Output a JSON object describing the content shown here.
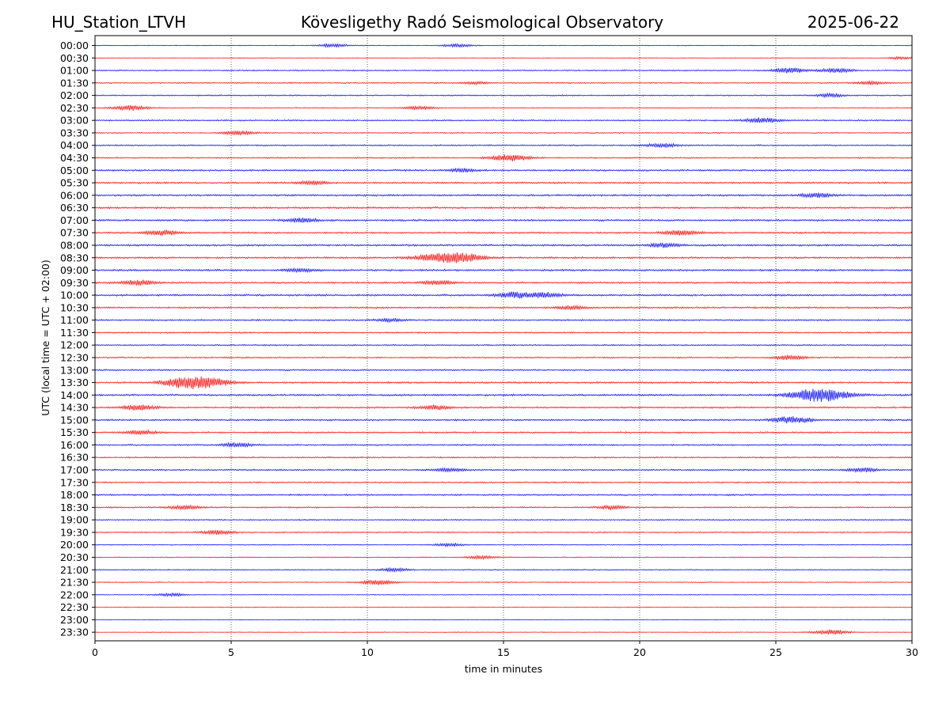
{
  "header": {
    "station": "HU_Station_LTVH",
    "observatory": "Kövesligethy Radó Seismological Observatory",
    "date": "2025-06-22"
  },
  "chart_data": {
    "type": "line",
    "subtype": "helicorder",
    "xlabel": "time in minutes",
    "ylabel": "UTC (local time = UTC + 02:00)",
    "xlim": [
      0,
      30
    ],
    "x_ticks": [
      "0",
      "5",
      "10",
      "15",
      "20",
      "25",
      "30"
    ],
    "x_tick_values": [
      0,
      5,
      10,
      15,
      20,
      25,
      30
    ],
    "grid": "vertical dotted lines every 5 minutes",
    "colors": [
      "#0000ff",
      "#ff0000"
    ],
    "rows": [
      "00:00",
      "00:30",
      "01:00",
      "01:30",
      "02:00",
      "02:30",
      "03:00",
      "03:30",
      "04:00",
      "04:30",
      "05:00",
      "05:30",
      "06:00",
      "06:30",
      "07:00",
      "07:30",
      "08:00",
      "08:30",
      "09:00",
      "09:30",
      "10:00",
      "10:30",
      "11:00",
      "11:30",
      "12:00",
      "12:30",
      "13:00",
      "13:30",
      "14:00",
      "14:30",
      "15:00",
      "15:30",
      "16:00",
      "16:30",
      "17:00",
      "17:30",
      "18:00",
      "18:30",
      "19:00",
      "19:30",
      "20:00",
      "20:30",
      "21:00",
      "21:30",
      "22:00",
      "22:30",
      "23:00",
      "23:30"
    ],
    "noise_level": [
      0.6,
      0.5,
      0.9,
      0.9,
      0.9,
      0.7,
      1.0,
      0.8,
      1.0,
      1.0,
      1.2,
      1.2,
      1.3,
      1.3,
      1.3,
      1.2,
      1.3,
      1.3,
      1.3,
      1.2,
      1.3,
      1.2,
      1.1,
      1.0,
      1.0,
      1.0,
      1.1,
      1.2,
      1.3,
      1.2,
      1.2,
      1.1,
      1.1,
      1.0,
      1.1,
      1.0,
      1.1,
      1.0,
      0.9,
      0.9,
      0.7,
      0.7,
      0.8,
      0.7,
      0.6,
      0.6,
      0.5,
      0.5
    ],
    "events": [
      {
        "row": "00:00",
        "minute": 13.3,
        "amplitude": 2
      },
      {
        "row": "00:00",
        "minute": 8.7,
        "amplitude": 2
      },
      {
        "row": "00:30",
        "minute": 29.6,
        "amplitude": 1.5
      },
      {
        "row": "01:00",
        "minute": 25.5,
        "amplitude": 3
      },
      {
        "row": "01:00",
        "minute": 27.2,
        "amplitude": 2.5
      },
      {
        "row": "01:30",
        "minute": 28.5,
        "amplitude": 2
      },
      {
        "row": "01:30",
        "minute": 14.0,
        "amplitude": 1.5
      },
      {
        "row": "02:00",
        "minute": 27.0,
        "amplitude": 2
      },
      {
        "row": "02:30",
        "minute": 1.3,
        "amplitude": 3
      },
      {
        "row": "02:30",
        "minute": 11.9,
        "amplitude": 2
      },
      {
        "row": "03:00",
        "minute": 24.5,
        "amplitude": 3
      },
      {
        "row": "03:30",
        "minute": 5.3,
        "amplitude": 2.5
      },
      {
        "row": "04:00",
        "minute": 20.8,
        "amplitude": 2.5
      },
      {
        "row": "04:30",
        "minute": 15.2,
        "amplitude": 4
      },
      {
        "row": "05:00",
        "minute": 13.5,
        "amplitude": 2
      },
      {
        "row": "05:30",
        "minute": 8.0,
        "amplitude": 2
      },
      {
        "row": "06:00",
        "minute": 26.5,
        "amplitude": 2.5
      },
      {
        "row": "07:00",
        "minute": 7.6,
        "amplitude": 2.5
      },
      {
        "row": "07:30",
        "minute": 21.5,
        "amplitude": 3
      },
      {
        "row": "07:30",
        "minute": 2.5,
        "amplitude": 3
      },
      {
        "row": "08:00",
        "minute": 20.9,
        "amplitude": 2.5
      },
      {
        "row": "08:30",
        "minute": 13.3,
        "amplitude": 6
      },
      {
        "row": "08:30",
        "minute": 12.2,
        "amplitude": 3
      },
      {
        "row": "09:00",
        "minute": 7.5,
        "amplitude": 2
      },
      {
        "row": "09:30",
        "minute": 1.6,
        "amplitude": 3
      },
      {
        "row": "09:30",
        "minute": 12.6,
        "amplitude": 2.5
      },
      {
        "row": "10:00",
        "minute": 15.4,
        "amplitude": 3.5
      },
      {
        "row": "10:00",
        "minute": 16.5,
        "amplitude": 3
      },
      {
        "row": "10:30",
        "minute": 17.5,
        "amplitude": 2
      },
      {
        "row": "11:00",
        "minute": 10.8,
        "amplitude": 1.8
      },
      {
        "row": "12:30",
        "minute": 25.5,
        "amplitude": 2.5
      },
      {
        "row": "13:30",
        "minute": 3.9,
        "amplitude": 7
      },
      {
        "row": "13:30",
        "minute": 3.0,
        "amplitude": 3
      },
      {
        "row": "14:00",
        "minute": 26.6,
        "amplitude": 8
      },
      {
        "row": "14:30",
        "minute": 1.6,
        "amplitude": 3
      },
      {
        "row": "14:30",
        "minute": 12.5,
        "amplitude": 2.5
      },
      {
        "row": "15:00",
        "minute": 25.6,
        "amplitude": 4
      },
      {
        "row": "15:30",
        "minute": 1.7,
        "amplitude": 2.5
      },
      {
        "row": "16:00",
        "minute": 5.2,
        "amplitude": 2.5
      },
      {
        "row": "17:00",
        "minute": 28.2,
        "amplitude": 2.5
      },
      {
        "row": "17:00",
        "minute": 13.0,
        "amplitude": 2
      },
      {
        "row": "18:30",
        "minute": 3.3,
        "amplitude": 2.5
      },
      {
        "row": "18:30",
        "minute": 19.0,
        "amplitude": 2
      },
      {
        "row": "19:30",
        "minute": 4.5,
        "amplitude": 2.5
      },
      {
        "row": "20:00",
        "minute": 13.0,
        "amplitude": 2
      },
      {
        "row": "20:30",
        "minute": 14.2,
        "amplitude": 2
      },
      {
        "row": "21:00",
        "minute": 11.0,
        "amplitude": 2
      },
      {
        "row": "21:30",
        "minute": 10.4,
        "amplitude": 3
      },
      {
        "row": "22:00",
        "minute": 2.8,
        "amplitude": 1.8
      },
      {
        "row": "23:30",
        "minute": 27.0,
        "amplitude": 3
      }
    ]
  }
}
